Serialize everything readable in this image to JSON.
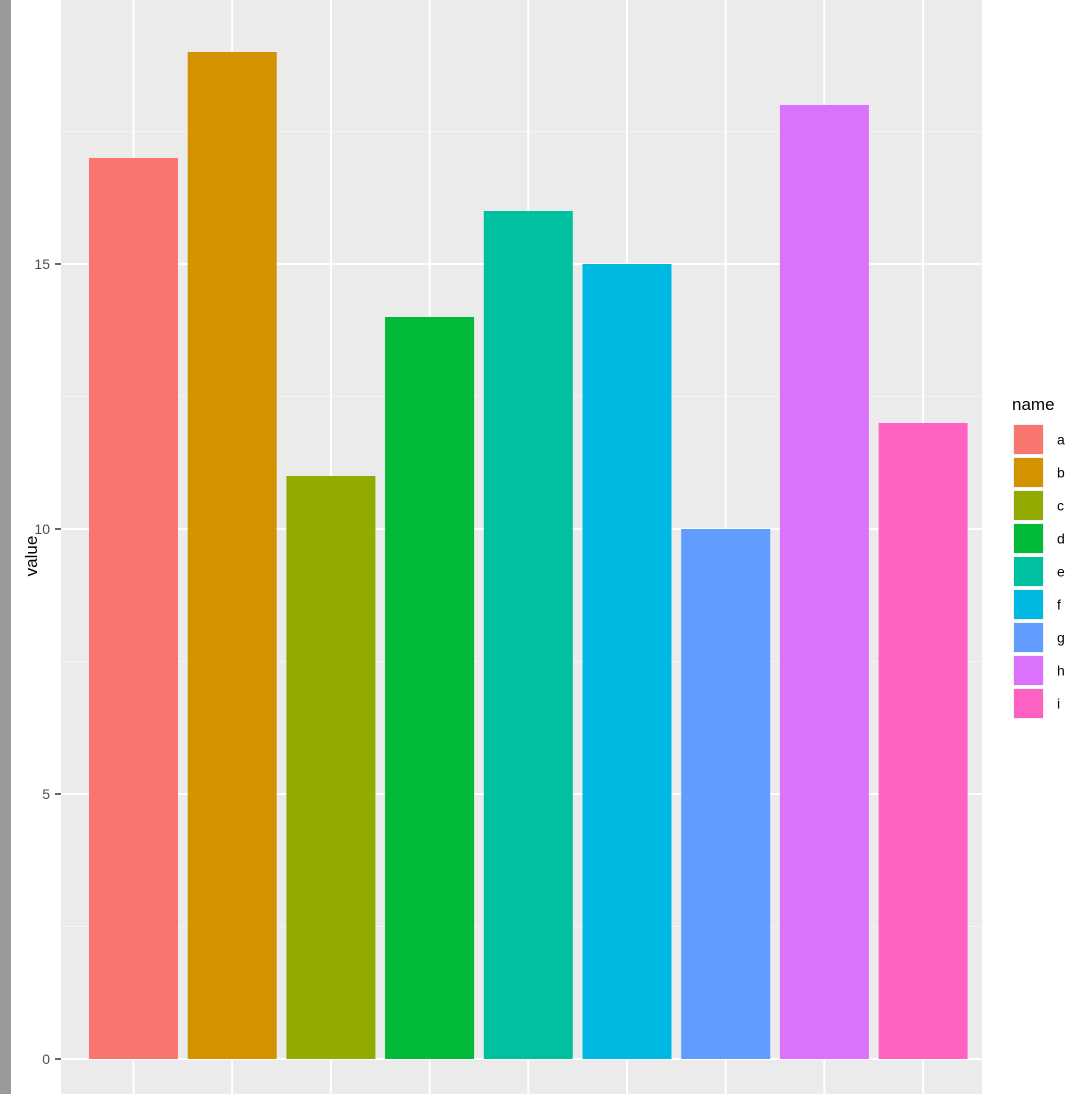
{
  "chart_data": {
    "type": "bar",
    "categories": [
      "a",
      "b",
      "c",
      "d",
      "e",
      "f",
      "g",
      "h",
      "i"
    ],
    "values": [
      17,
      19,
      11,
      14,
      16,
      15,
      10,
      18,
      12
    ],
    "colors": [
      "#F8766D",
      "#D39200",
      "#93AA00",
      "#00BA38",
      "#00C19F",
      "#00B9E3",
      "#619CFF",
      "#DB72FB",
      "#FF61C3"
    ],
    "ylabel": "value",
    "xlabel": "",
    "y_ticks": [
      0,
      5,
      10,
      15
    ],
    "ylim": [
      0,
      19.95
    ],
    "grid": true,
    "panel_background": "#EBEBEB",
    "legend": {
      "title": "name",
      "placement": "right",
      "entries": [
        "a",
        "b",
        "c",
        "d",
        "e",
        "f",
        "g",
        "h",
        "i"
      ]
    }
  }
}
